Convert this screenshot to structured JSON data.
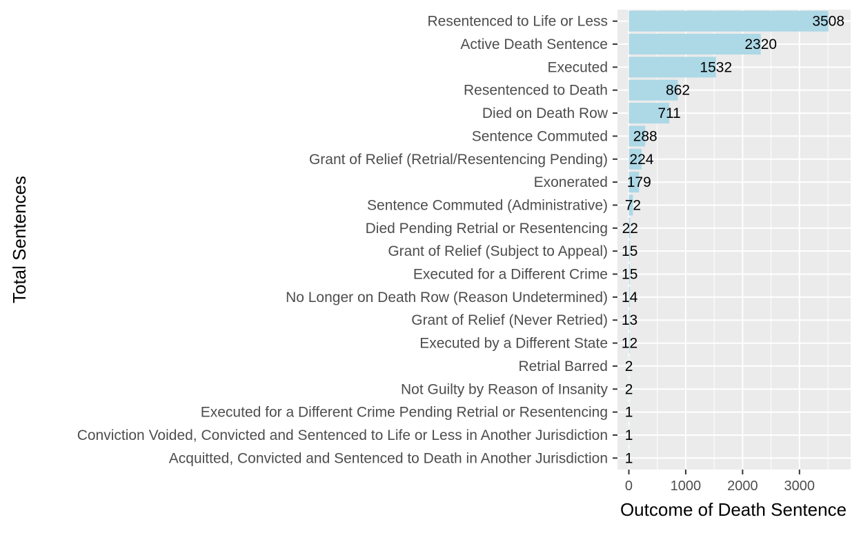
{
  "chart_data": {
    "type": "bar",
    "orientation": "horizontal",
    "title": "",
    "xlabel": "Outcome of Death Sentence",
    "ylabel": "Total Sentences",
    "categories": [
      "Resentenced to Life or Less",
      "Active Death Sentence",
      "Executed",
      "Resentenced to Death",
      "Died on Death Row",
      "Sentence Commuted",
      "Grant of Relief (Retrial/Resentencing Pending)",
      "Exonerated",
      "Sentence Commuted (Administrative)",
      "Died Pending Retrial or Resentencing",
      "Grant of Relief (Subject to Appeal)",
      "Executed for a Different Crime",
      "No Longer on Death Row (Reason Undetermined)",
      "Grant of Relief (Never Retried)",
      "Executed by a Different State",
      "Retrial Barred",
      "Not Guilty by Reason of Insanity",
      "Executed for a Different Crime Pending Retrial or Resentencing",
      "Conviction Voided, Convicted and Sentenced to Life or Less in Another Jurisdiction",
      "Acquitted, Convicted and Sentenced to Death in Another Jurisdiction"
    ],
    "values": [
      3508,
      2320,
      1532,
      862,
      711,
      288,
      224,
      179,
      72,
      22,
      15,
      15,
      14,
      13,
      12,
      2,
      2,
      1,
      1,
      1
    ],
    "xlim": [
      -200,
      3900
    ],
    "xticks": [
      0,
      1000,
      2000,
      3000
    ],
    "grid": true,
    "legend": "none",
    "colors": {
      "bar": "#add8e6",
      "panel": "#ebebeb",
      "grid_major": "#ffffff",
      "tick_text": "#4d4d4d",
      "title_text": "#000000"
    }
  }
}
